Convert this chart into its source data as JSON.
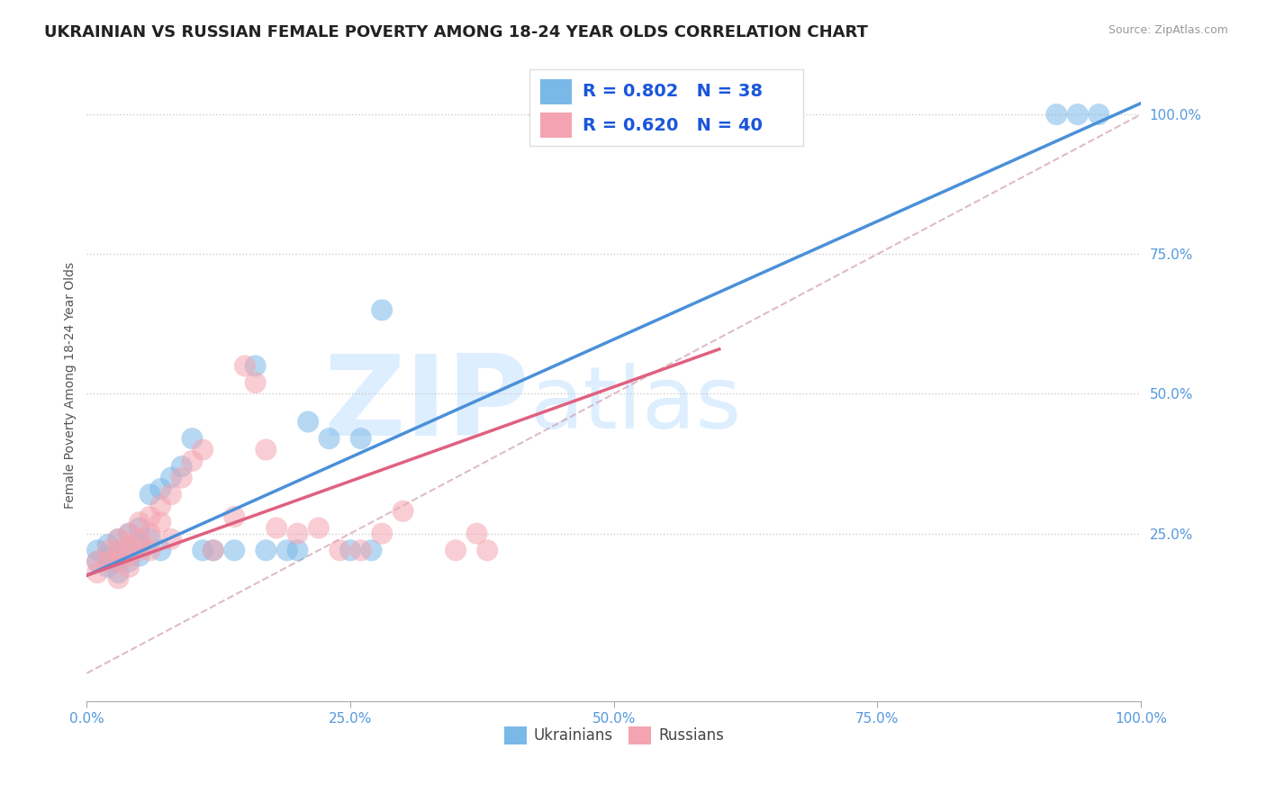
{
  "title": "UKRAINIAN VS RUSSIAN FEMALE POVERTY AMONG 18-24 YEAR OLDS CORRELATION CHART",
  "source": "Source: ZipAtlas.com",
  "ylabel": "Female Poverty Among 18-24 Year Olds",
  "xlim": [
    0,
    1.0
  ],
  "ylim": [
    -0.05,
    1.08
  ],
  "xticks": [
    0.0,
    0.25,
    0.5,
    0.75,
    1.0
  ],
  "yticks": [
    0.25,
    0.5,
    0.75,
    1.0
  ],
  "xticklabels": [
    "0.0%",
    "25.0%",
    "50.0%",
    "75.0%",
    "100.0%"
  ],
  "yticklabels": [
    "25.0%",
    "50.0%",
    "75.0%",
    "100.0%"
  ],
  "ukr_color": "#7ab8e8",
  "rus_color": "#f4a4b0",
  "ukr_line_color": "#4a90d9",
  "rus_line_color": "#e06080",
  "ref_line_color": "#d0a0b0",
  "ukr_R": 0.802,
  "ukr_N": 38,
  "rus_R": 0.62,
  "rus_N": 40,
  "legend_R_color": "#1a56db",
  "background_color": "#ffffff",
  "grid_color": "#cccccc",
  "watermark_zip": "ZIP",
  "watermark_atlas": "atlas",
  "watermark_color": "#ddeeff",
  "title_fontsize": 13,
  "tick_label_color": "#5599dd",
  "source_color": "#999999",
  "ukr_scatter": [
    [
      0.01,
      0.22
    ],
    [
      0.01,
      0.2
    ],
    [
      0.02,
      0.23
    ],
    [
      0.02,
      0.21
    ],
    [
      0.02,
      0.19
    ],
    [
      0.03,
      0.24
    ],
    [
      0.03,
      0.22
    ],
    [
      0.03,
      0.2
    ],
    [
      0.03,
      0.18
    ],
    [
      0.04,
      0.25
    ],
    [
      0.04,
      0.22
    ],
    [
      0.04,
      0.2
    ],
    [
      0.05,
      0.26
    ],
    [
      0.05,
      0.23
    ],
    [
      0.05,
      0.21
    ],
    [
      0.06,
      0.32
    ],
    [
      0.06,
      0.24
    ],
    [
      0.07,
      0.33
    ],
    [
      0.07,
      0.22
    ],
    [
      0.08,
      0.35
    ],
    [
      0.09,
      0.37
    ],
    [
      0.1,
      0.42
    ],
    [
      0.11,
      0.22
    ],
    [
      0.12,
      0.22
    ],
    [
      0.14,
      0.22
    ],
    [
      0.16,
      0.55
    ],
    [
      0.17,
      0.22
    ],
    [
      0.19,
      0.22
    ],
    [
      0.2,
      0.22
    ],
    [
      0.21,
      0.45
    ],
    [
      0.23,
      0.42
    ],
    [
      0.25,
      0.22
    ],
    [
      0.26,
      0.42
    ],
    [
      0.27,
      0.22
    ],
    [
      0.28,
      0.65
    ],
    [
      0.92,
      1.0
    ],
    [
      0.94,
      1.0
    ],
    [
      0.96,
      1.0
    ]
  ],
  "rus_scatter": [
    [
      0.01,
      0.2
    ],
    [
      0.01,
      0.18
    ],
    [
      0.02,
      0.22
    ],
    [
      0.02,
      0.2
    ],
    [
      0.03,
      0.24
    ],
    [
      0.03,
      0.22
    ],
    [
      0.03,
      0.2
    ],
    [
      0.03,
      0.17
    ],
    [
      0.04,
      0.25
    ],
    [
      0.04,
      0.23
    ],
    [
      0.04,
      0.21
    ],
    [
      0.04,
      0.19
    ],
    [
      0.05,
      0.27
    ],
    [
      0.05,
      0.24
    ],
    [
      0.05,
      0.22
    ],
    [
      0.06,
      0.28
    ],
    [
      0.06,
      0.25
    ],
    [
      0.06,
      0.22
    ],
    [
      0.07,
      0.3
    ],
    [
      0.07,
      0.27
    ],
    [
      0.08,
      0.32
    ],
    [
      0.08,
      0.24
    ],
    [
      0.09,
      0.35
    ],
    [
      0.1,
      0.38
    ],
    [
      0.11,
      0.4
    ],
    [
      0.12,
      0.22
    ],
    [
      0.14,
      0.28
    ],
    [
      0.15,
      0.55
    ],
    [
      0.16,
      0.52
    ],
    [
      0.17,
      0.4
    ],
    [
      0.18,
      0.26
    ],
    [
      0.2,
      0.25
    ],
    [
      0.22,
      0.26
    ],
    [
      0.24,
      0.22
    ],
    [
      0.26,
      0.22
    ],
    [
      0.28,
      0.25
    ],
    [
      0.3,
      0.29
    ],
    [
      0.35,
      0.22
    ],
    [
      0.37,
      0.25
    ],
    [
      0.38,
      0.22
    ]
  ],
  "ukr_line_pts": [
    [
      0.0,
      0.175
    ],
    [
      1.0,
      1.02
    ]
  ],
  "rus_line_pts": [
    [
      0.0,
      0.175
    ],
    [
      0.6,
      0.58
    ]
  ],
  "ref_line_pts": [
    [
      0.0,
      0.0
    ],
    [
      1.0,
      1.0
    ]
  ]
}
